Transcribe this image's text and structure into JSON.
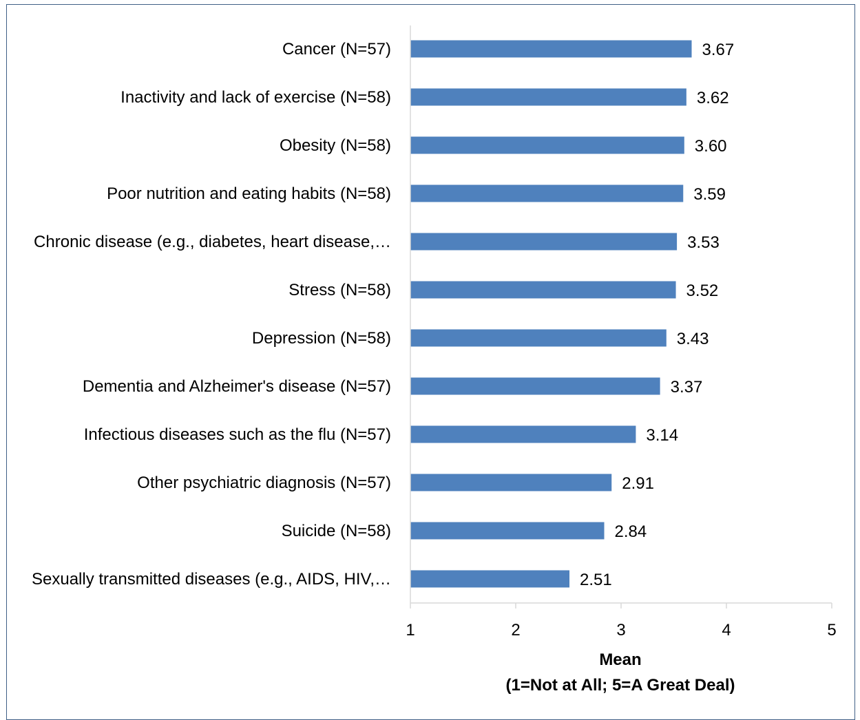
{
  "chart_data": {
    "type": "bar",
    "orientation": "horizontal",
    "categories": [
      "Cancer (N=57)",
      "Inactivity and lack of exercise (N=58)",
      "Obesity (N=58)",
      "Poor nutrition and eating habits (N=58)",
      "Chronic disease (e.g., diabetes, heart disease,…",
      "Stress (N=58)",
      "Depression (N=58)",
      "Dementia and Alzheimer's disease (N=57)",
      "Infectious diseases such as the flu (N=57)",
      "Other psychiatric diagnosis (N=57)",
      "Suicide (N=58)",
      "Sexually transmitted diseases (e.g., AIDS, HIV,…"
    ],
    "values": [
      3.67,
      3.62,
      3.6,
      3.59,
      3.53,
      3.52,
      3.43,
      3.37,
      3.14,
      2.91,
      2.84,
      2.51
    ],
    "value_labels": [
      "3.67",
      "3.62",
      "3.60",
      "3.59",
      "3.53",
      "3.52",
      "3.43",
      "3.37",
      "3.14",
      "2.91",
      "2.84",
      "2.51"
    ],
    "xlim": [
      1,
      5
    ],
    "xticks": [
      "1",
      "2",
      "3",
      "4",
      "5"
    ],
    "xlabel_line1": "Mean",
    "xlabel_line2": "(1=Not at All; 5=A Great Deal)",
    "bar_color": "#4f81bd",
    "axis_color": "#d9d9d9",
    "grid": false
  }
}
